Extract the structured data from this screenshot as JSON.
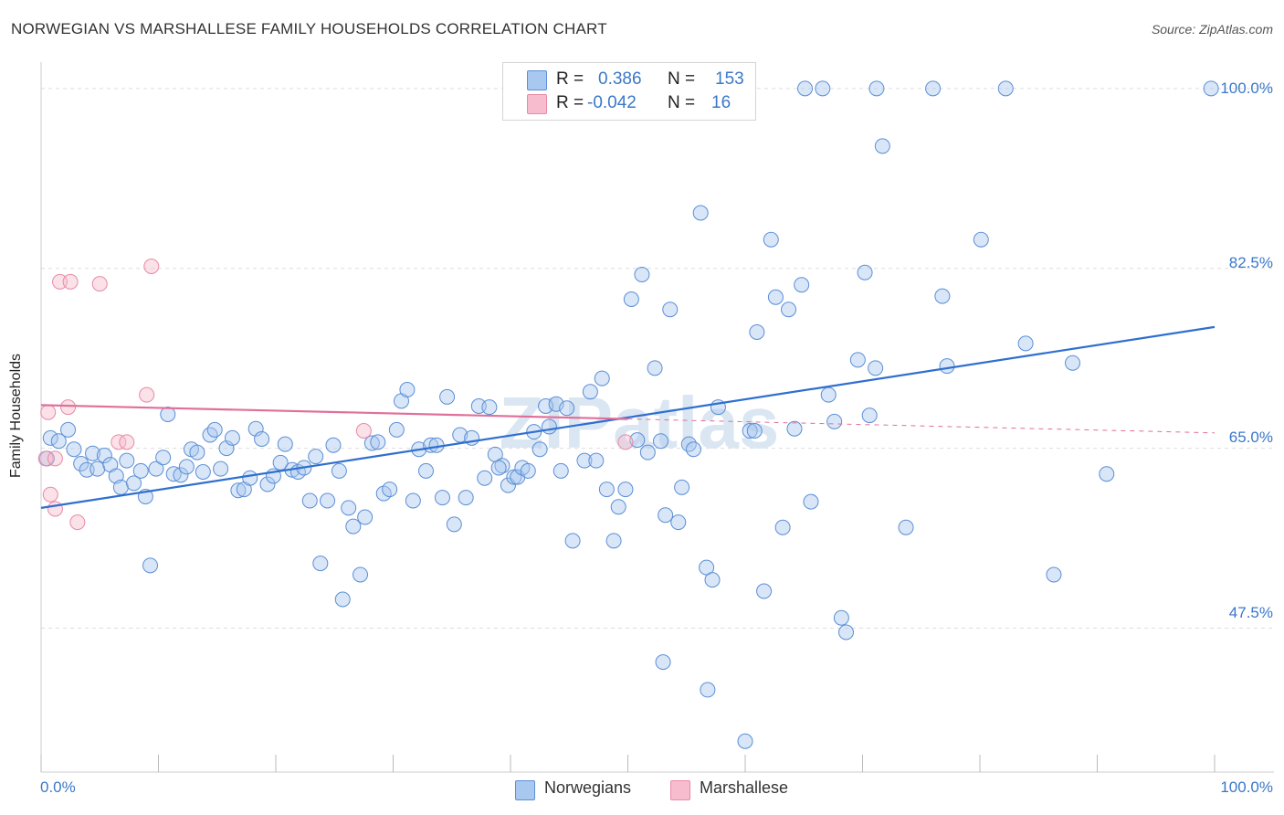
{
  "header": {
    "title": "NORWEGIAN VS MARSHALLESE FAMILY HOUSEHOLDS CORRELATION CHART",
    "source": "Source: ZipAtlas.com"
  },
  "legend_top": {
    "rows": [
      {
        "r_label": "R =",
        "r_value": "0.386",
        "n_label": "N =",
        "n_value": "153"
      },
      {
        "r_label": "R =",
        "r_value": "-0.042",
        "n_label": "N =",
        "n_value": "16"
      }
    ]
  },
  "legend_bottom": {
    "norwegians": "Norwegians",
    "marshallese": "Marshallese"
  },
  "watermark": "ZIPatlas",
  "colors": {
    "blue_fill": "#a9c8ef",
    "blue_stroke": "#5b8fd6",
    "blue_line": "#2f6fcf",
    "pink_fill": "#f7bccd",
    "pink_stroke": "#e88aa6",
    "pink_line": "#e0709a",
    "axis_text": "#3a78c9",
    "grid": "#dddddd"
  },
  "chart_data": {
    "type": "scatter",
    "title": "NORWEGIAN VS MARSHALLESE FAMILY HOUSEHOLDS CORRELATION CHART",
    "xlabel": "",
    "ylabel": "Family Households",
    "xlim": [
      0,
      100
    ],
    "ylim": [
      33.5,
      101.5
    ],
    "x_tick_labels": [
      "0.0%",
      "100.0%"
    ],
    "y_ticks": [
      47.5,
      65.0,
      82.5,
      100.0
    ],
    "y_tick_labels": [
      "47.5%",
      "65.0%",
      "82.5%",
      "100.0%"
    ],
    "grid": true,
    "series": [
      {
        "name": "Norwegians",
        "R": 0.386,
        "N": 153,
        "trend": {
          "x0": 0,
          "y0": 59.2,
          "x1": 100,
          "y1": 76.8
        },
        "points": [
          [
            0.5,
            64.0
          ],
          [
            0.8,
            66.0
          ],
          [
            1.5,
            65.7
          ],
          [
            2.3,
            66.8
          ],
          [
            2.8,
            64.9
          ],
          [
            3.4,
            63.5
          ],
          [
            3.9,
            62.9
          ],
          [
            4.4,
            64.5
          ],
          [
            4.8,
            63.0
          ],
          [
            5.4,
            64.3
          ],
          [
            5.9,
            63.4
          ],
          [
            6.4,
            62.3
          ],
          [
            6.8,
            61.2
          ],
          [
            7.3,
            63.8
          ],
          [
            7.9,
            61.6
          ],
          [
            8.5,
            62.8
          ],
          [
            8.9,
            60.3
          ],
          [
            9.3,
            53.6
          ],
          [
            9.8,
            63.0
          ],
          [
            10.4,
            64.1
          ],
          [
            10.8,
            68.3
          ],
          [
            11.3,
            62.5
          ],
          [
            11.9,
            62.4
          ],
          [
            12.4,
            63.2
          ],
          [
            12.8,
            64.9
          ],
          [
            13.3,
            64.6
          ],
          [
            13.8,
            62.7
          ],
          [
            14.4,
            66.3
          ],
          [
            14.8,
            66.8
          ],
          [
            15.3,
            63.0
          ],
          [
            15.8,
            65.0
          ],
          [
            16.3,
            66.0
          ],
          [
            16.8,
            60.9
          ],
          [
            17.3,
            61.0
          ],
          [
            17.8,
            62.1
          ],
          [
            18.3,
            66.9
          ],
          [
            18.8,
            65.9
          ],
          [
            19.3,
            61.5
          ],
          [
            19.8,
            62.3
          ],
          [
            20.4,
            63.6
          ],
          [
            20.8,
            65.4
          ],
          [
            21.4,
            62.9
          ],
          [
            21.9,
            62.7
          ],
          [
            22.4,
            63.1
          ],
          [
            22.9,
            59.9
          ],
          [
            23.4,
            64.2
          ],
          [
            23.8,
            53.8
          ],
          [
            24.4,
            59.9
          ],
          [
            24.9,
            65.3
          ],
          [
            25.4,
            62.8
          ],
          [
            25.7,
            50.3
          ],
          [
            26.2,
            59.2
          ],
          [
            26.6,
            57.4
          ],
          [
            27.2,
            52.7
          ],
          [
            27.6,
            58.3
          ],
          [
            28.2,
            65.5
          ],
          [
            28.7,
            65.6
          ],
          [
            29.2,
            60.6
          ],
          [
            29.7,
            61.0
          ],
          [
            30.3,
            66.8
          ],
          [
            30.7,
            69.6
          ],
          [
            31.2,
            70.7
          ],
          [
            31.7,
            59.9
          ],
          [
            32.2,
            64.9
          ],
          [
            32.8,
            62.8
          ],
          [
            33.2,
            65.3
          ],
          [
            33.7,
            65.3
          ],
          [
            34.2,
            60.2
          ],
          [
            34.6,
            70.0
          ],
          [
            35.2,
            57.6
          ],
          [
            35.7,
            66.3
          ],
          [
            36.2,
            60.2
          ],
          [
            36.7,
            66.0
          ],
          [
            37.3,
            69.1
          ],
          [
            37.8,
            62.1
          ],
          [
            38.2,
            69.0
          ],
          [
            38.7,
            64.4
          ],
          [
            39.3,
            63.3
          ],
          [
            39.8,
            61.4
          ],
          [
            40.3,
            62.2
          ],
          [
            40.6,
            62.2
          ],
          [
            41.0,
            63.1
          ],
          [
            41.5,
            62.8
          ],
          [
            42.0,
            66.6
          ],
          [
            42.5,
            64.9
          ],
          [
            43.0,
            69.1
          ],
          [
            43.3,
            67.1
          ],
          [
            43.9,
            69.3
          ],
          [
            44.3,
            62.8
          ],
          [
            44.8,
            68.9
          ],
          [
            45.3,
            56.0
          ],
          [
            46.3,
            63.8
          ],
          [
            46.8,
            70.5
          ],
          [
            47.3,
            63.8
          ],
          [
            47.8,
            71.8
          ],
          [
            48.2,
            61.0
          ],
          [
            48.8,
            56.0
          ],
          [
            49.2,
            59.3
          ],
          [
            49.8,
            61.0
          ],
          [
            50.3,
            79.5
          ],
          [
            50.8,
            65.8
          ],
          [
            51.2,
            81.9
          ],
          [
            51.7,
            64.6
          ],
          [
            52.3,
            72.8
          ],
          [
            52.8,
            65.7
          ],
          [
            53.2,
            58.5
          ],
          [
            53.6,
            78.5
          ],
          [
            54.3,
            57.8
          ],
          [
            54.6,
            61.2
          ],
          [
            55.2,
            65.4
          ],
          [
            55.6,
            64.9
          ],
          [
            56.2,
            87.9
          ],
          [
            56.7,
            53.4
          ],
          [
            57.2,
            52.2
          ],
          [
            57.7,
            69.0
          ],
          [
            60.4,
            66.7
          ],
          [
            60.8,
            66.7
          ],
          [
            61.0,
            76.3
          ],
          [
            61.6,
            51.1
          ],
          [
            62.2,
            85.3
          ],
          [
            62.6,
            79.7
          ],
          [
            63.2,
            57.3
          ],
          [
            63.7,
            78.5
          ],
          [
            64.2,
            66.9
          ],
          [
            64.8,
            80.9
          ],
          [
            65.1,
            100.0
          ],
          [
            65.6,
            59.8
          ],
          [
            66.6,
            100.0
          ],
          [
            67.1,
            70.2
          ],
          [
            67.6,
            67.6
          ],
          [
            68.2,
            48.5
          ],
          [
            68.6,
            47.1
          ],
          [
            69.6,
            73.6
          ],
          [
            70.2,
            82.1
          ],
          [
            70.6,
            68.2
          ],
          [
            71.1,
            72.8
          ],
          [
            71.7,
            94.4
          ],
          [
            71.2,
            100.0
          ],
          [
            73.7,
            57.3
          ],
          [
            76.0,
            100.0
          ],
          [
            76.8,
            79.8
          ],
          [
            77.2,
            73.0
          ],
          [
            80.1,
            85.3
          ],
          [
            82.2,
            100.0
          ],
          [
            83.9,
            75.2
          ],
          [
            86.3,
            52.7
          ],
          [
            87.9,
            73.3
          ],
          [
            90.8,
            62.5
          ],
          [
            99.7,
            100.0
          ],
          [
            56.8,
            41.5
          ],
          [
            60.0,
            36.5
          ],
          [
            53.0,
            44.2
          ],
          [
            39.0,
            63.1
          ]
        ]
      },
      {
        "name": "Marshallese",
        "R": -0.042,
        "N": 16,
        "trend": {
          "x0": 0,
          "y0": 69.2,
          "x1": 100,
          "y1": 66.5
        },
        "points": [
          [
            0.4,
            64.0
          ],
          [
            0.6,
            68.5
          ],
          [
            0.8,
            60.5
          ],
          [
            1.2,
            59.1
          ],
          [
            1.6,
            81.2
          ],
          [
            2.3,
            69.0
          ],
          [
            2.5,
            81.2
          ],
          [
            3.1,
            57.8
          ],
          [
            5.0,
            81.0
          ],
          [
            6.6,
            65.6
          ],
          [
            7.3,
            65.6
          ],
          [
            9.0,
            70.2
          ],
          [
            9.4,
            82.7
          ],
          [
            27.5,
            66.7
          ],
          [
            49.8,
            65.6
          ],
          [
            1.2,
            64.0
          ]
        ]
      }
    ]
  }
}
